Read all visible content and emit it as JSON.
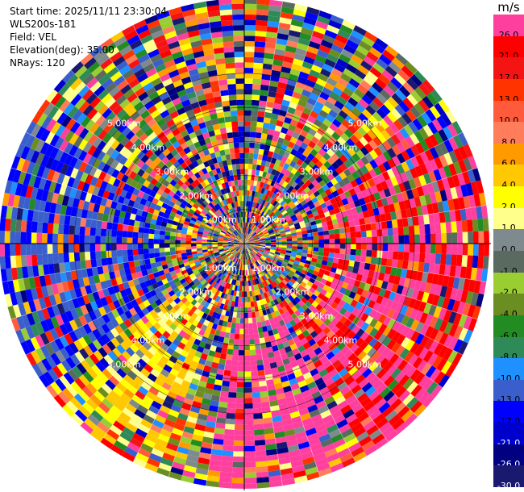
{
  "header": {
    "start_time": "Start time: 2025/11/11 23:30:04",
    "station": "WLS200s-181",
    "field": "Field: VEL",
    "elevation": "Elevation(deg): 35.00",
    "nrays": "NRays: 120"
  },
  "colorbar": {
    "unit": "m/s",
    "bins": [
      {
        "label": "26.0",
        "color": "#ff3f9e"
      },
      {
        "label": "21.0",
        "color": "#ff0000"
      },
      {
        "label": "17.0",
        "color": "#f51414"
      },
      {
        "label": "13.0",
        "color": "#ff3300"
      },
      {
        "label": "10.0",
        "color": "#ff5a3c"
      },
      {
        "label": "8.0",
        "color": "#ff7d5a"
      },
      {
        "label": "6.0",
        "color": "#ff9a00"
      },
      {
        "label": "4.0",
        "color": "#ffc800"
      },
      {
        "label": "2.0",
        "color": "#ffff00"
      },
      {
        "label": "1.0",
        "color": "#ffff8c"
      },
      {
        "label": "0.0",
        "color": "#7f8a8f"
      },
      {
        "label": "-1.0",
        "color": "#5a6a60"
      },
      {
        "label": "-2.0",
        "color": "#9acd32"
      },
      {
        "label": "-4.0",
        "color": "#6b8e23"
      },
      {
        "label": "-6.0",
        "color": "#228b22"
      },
      {
        "label": "-8.0",
        "color": "#2e8b57"
      },
      {
        "label": "-10.0",
        "color": "#1e90ff"
      },
      {
        "label": "-13.0",
        "color": "#3a5fcd"
      },
      {
        "label": "-17.0",
        "color": "#0000ff"
      },
      {
        "label": "-21.0",
        "color": "#0000cd"
      },
      {
        "label": "-26.0",
        "color": "#000080"
      },
      {
        "label": "-30.0",
        "color": "#191970"
      }
    ]
  },
  "chart_data": {
    "type": "heatmap",
    "projection": "polar PPI",
    "nrays": 120,
    "field": "VEL",
    "range_rings_km": [
      1,
      2,
      3,
      4,
      5
    ],
    "ring_labels": [
      "1.00km",
      "2.00km",
      "3.00km",
      "4.00km",
      "5.00km"
    ],
    "max_range_km": 7.2,
    "value_range": [
      -30,
      26
    ],
    "colorbar_ticks": [
      26,
      21,
      17,
      13,
      10,
      8,
      6,
      4,
      2,
      1,
      0,
      -1,
      -2,
      -4,
      -6,
      -8,
      -10,
      -13,
      -17,
      -21,
      -26,
      -30
    ],
    "sectors": [
      {
        "name": "east-positive",
        "azimuth_deg": [
          60,
          150
        ],
        "dominant_value": 21
      },
      {
        "name": "south-east-positive",
        "azimuth_deg": [
          150,
          190
        ],
        "dominant_value": 26
      },
      {
        "name": "west-negative",
        "azimuth_deg": [
          235,
          300
        ],
        "dominant_value": -17
      },
      {
        "name": "south-west-slight-positive",
        "azimuth_deg": [
          200,
          235
        ],
        "dominant_value": 2
      }
    ]
  }
}
